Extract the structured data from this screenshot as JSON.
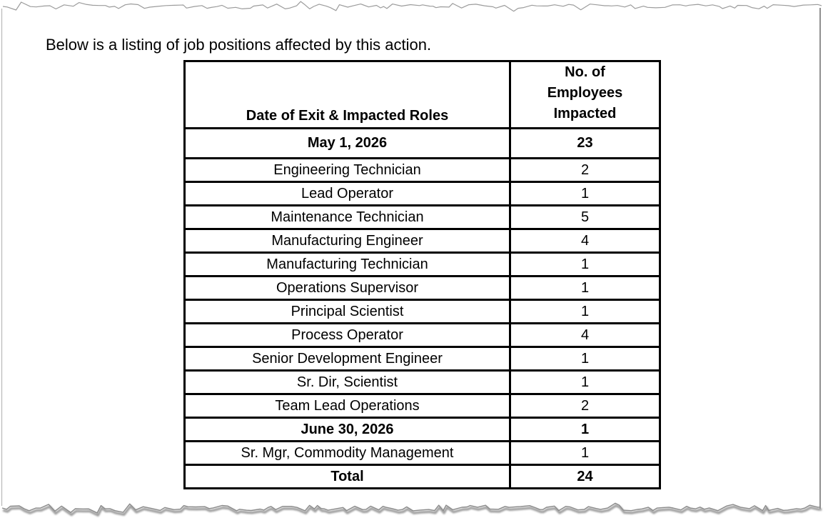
{
  "page": {
    "intro": "Below is a listing of job positions affected by this action."
  },
  "table": {
    "headers": {
      "col1": "Date of Exit & Impacted Roles",
      "col2": "No. of\nEmployees\nImpacted"
    },
    "sections": [
      {
        "date": "May 1, 2026",
        "count": "23",
        "roles": [
          {
            "role": "Engineering Technician",
            "count": "2"
          },
          {
            "role": "Lead Operator",
            "count": "1"
          },
          {
            "role": "Maintenance Technician",
            "count": "5"
          },
          {
            "role": "Manufacturing Engineer",
            "count": "4"
          },
          {
            "role": "Manufacturing Technician",
            "count": "1"
          },
          {
            "role": "Operations Supervisor",
            "count": "1"
          },
          {
            "role": "Principal Scientist",
            "count": "1"
          },
          {
            "role": "Process Operator",
            "count": "4"
          },
          {
            "role": "Senior Development Engineer",
            "count": "1"
          },
          {
            "role": "Sr. Dir, Scientist",
            "count": "1"
          },
          {
            "role": "Team Lead Operations",
            "count": "2"
          }
        ]
      },
      {
        "date": "June 30, 2026",
        "count": "1",
        "roles": [
          {
            "role": "Sr. Mgr, Commodity Management",
            "count": "1"
          }
        ]
      }
    ],
    "total": {
      "label": "Total",
      "count": "24"
    }
  }
}
